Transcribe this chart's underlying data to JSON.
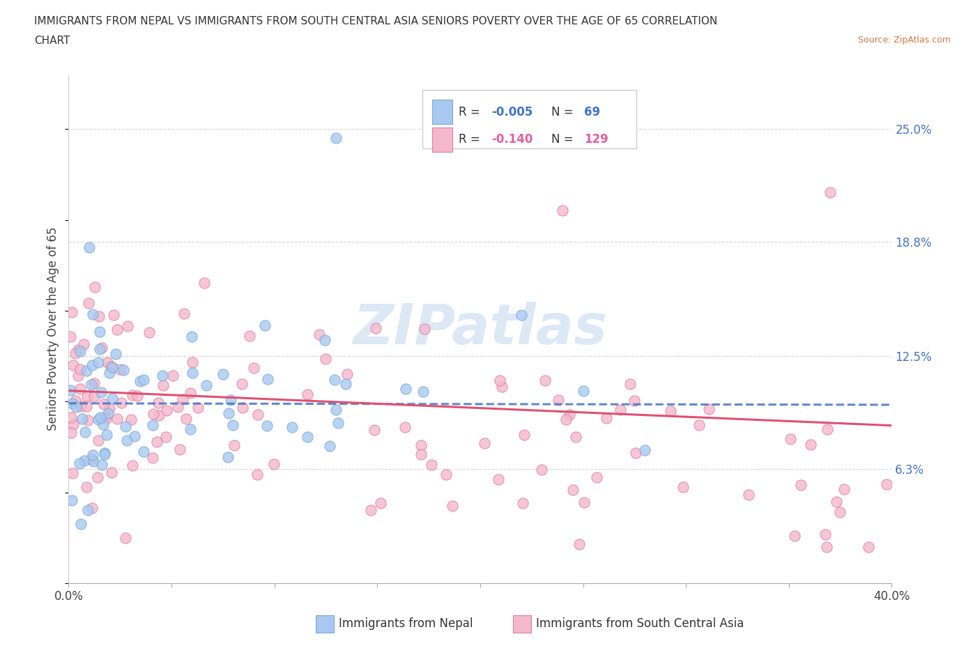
{
  "title_line1": "IMMIGRANTS FROM NEPAL VS IMMIGRANTS FROM SOUTH CENTRAL ASIA SENIORS POVERTY OVER THE AGE OF 65 CORRELATION",
  "title_line2": "CHART",
  "source": "Source: ZipAtlas.com",
  "ylabel": "Seniors Poverty Over the Age of 65",
  "xlim": [
    0.0,
    0.4
  ],
  "ylim": [
    0.0,
    0.28
  ],
  "yticks": [
    0.063,
    0.125,
    0.188,
    0.25
  ],
  "ytick_labels": [
    "6.3%",
    "12.5%",
    "18.8%",
    "25.0%"
  ],
  "xticks": [
    0.0,
    0.05,
    0.1,
    0.15,
    0.2,
    0.25,
    0.3,
    0.35,
    0.4
  ],
  "xtick_labels": [
    "0.0%",
    "",
    "",
    "",
    "",
    "",
    "",
    "",
    "40.0%"
  ],
  "nepal_color": "#a8c8f0",
  "nepal_edge_color": "#7aaad8",
  "sca_color": "#f4b8cc",
  "sca_edge_color": "#e080a0",
  "nepal_R": -0.005,
  "nepal_N": 69,
  "sca_R": -0.14,
  "sca_N": 129,
  "nepal_line_color": "#4472c4",
  "nepal_line_dash_color": "#88aadd",
  "sca_line_color": "#e05070",
  "watermark_color": "#dde8f5",
  "background_color": "#ffffff",
  "grid_color": "#cccccc",
  "title_color": "#333333",
  "source_color": "#d07848",
  "right_tick_color": "#4472c4",
  "legend_border_color": "#cccccc"
}
